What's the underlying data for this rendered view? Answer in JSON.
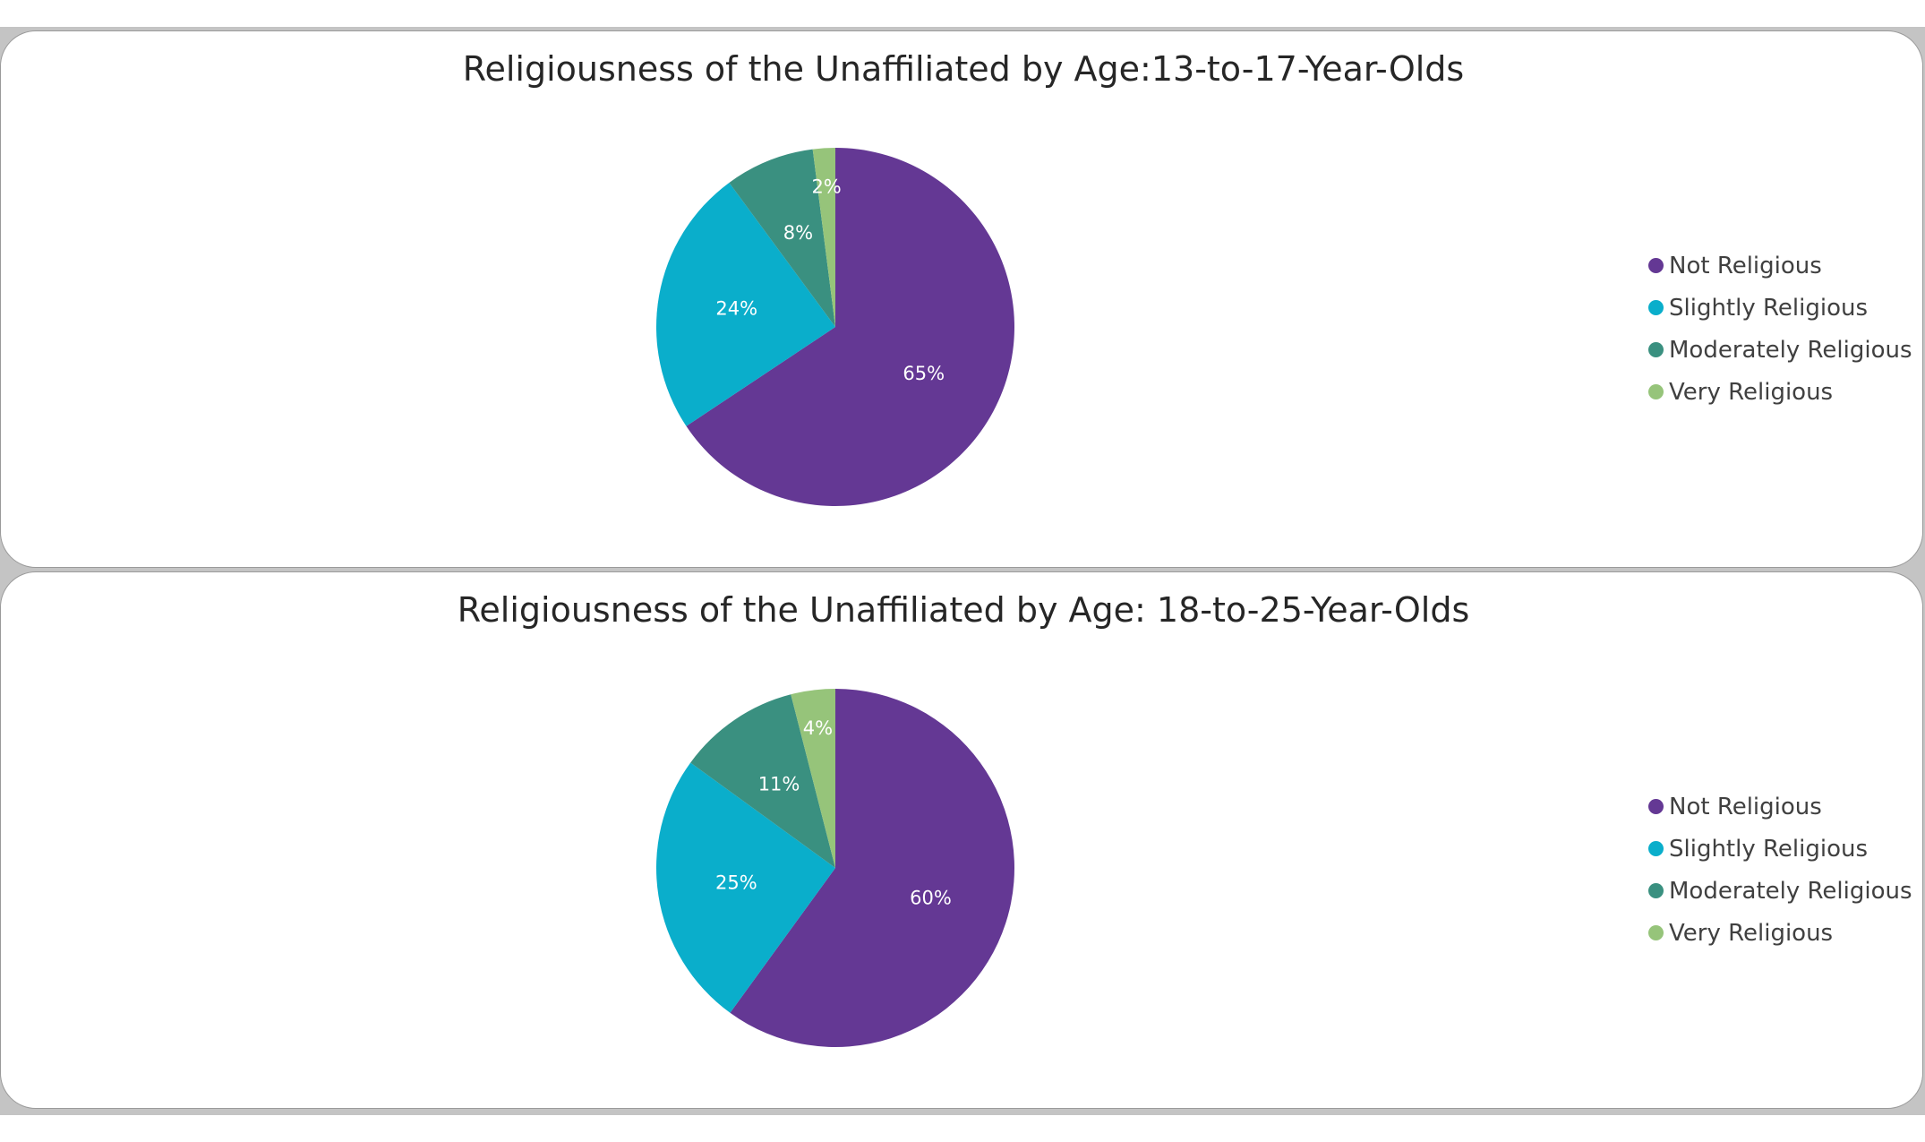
{
  "chart_data": [
    {
      "type": "pie",
      "title": "Religiousness of the Unaffiliated by Age:13-to-17-Year-Olds",
      "categories": [
        "Not Religious",
        "Slightly Religious",
        "Moderately Religious",
        "Very Religious"
      ],
      "values": [
        65,
        24,
        8,
        2
      ],
      "data_labels": [
        "65%",
        "24%",
        "8%",
        "2%"
      ],
      "colors": [
        "#643894",
        "#0aaecb",
        "#3a9080",
        "#96c47a"
      ],
      "legend": "right"
    },
    {
      "type": "pie",
      "title": "Religiousness of the Unaffiliated by Age: 18-to-25-Year-Olds",
      "categories": [
        "Not Religious",
        "Slightly Religious",
        "Moderately Religious",
        "Very Religious"
      ],
      "values": [
        60,
        25,
        11,
        4
      ],
      "data_labels": [
        "60%",
        "25%",
        "11%",
        "4%"
      ],
      "colors": [
        "#643894",
        "#0aaecb",
        "#3a9080",
        "#96c47a"
      ],
      "legend": "right"
    }
  ]
}
